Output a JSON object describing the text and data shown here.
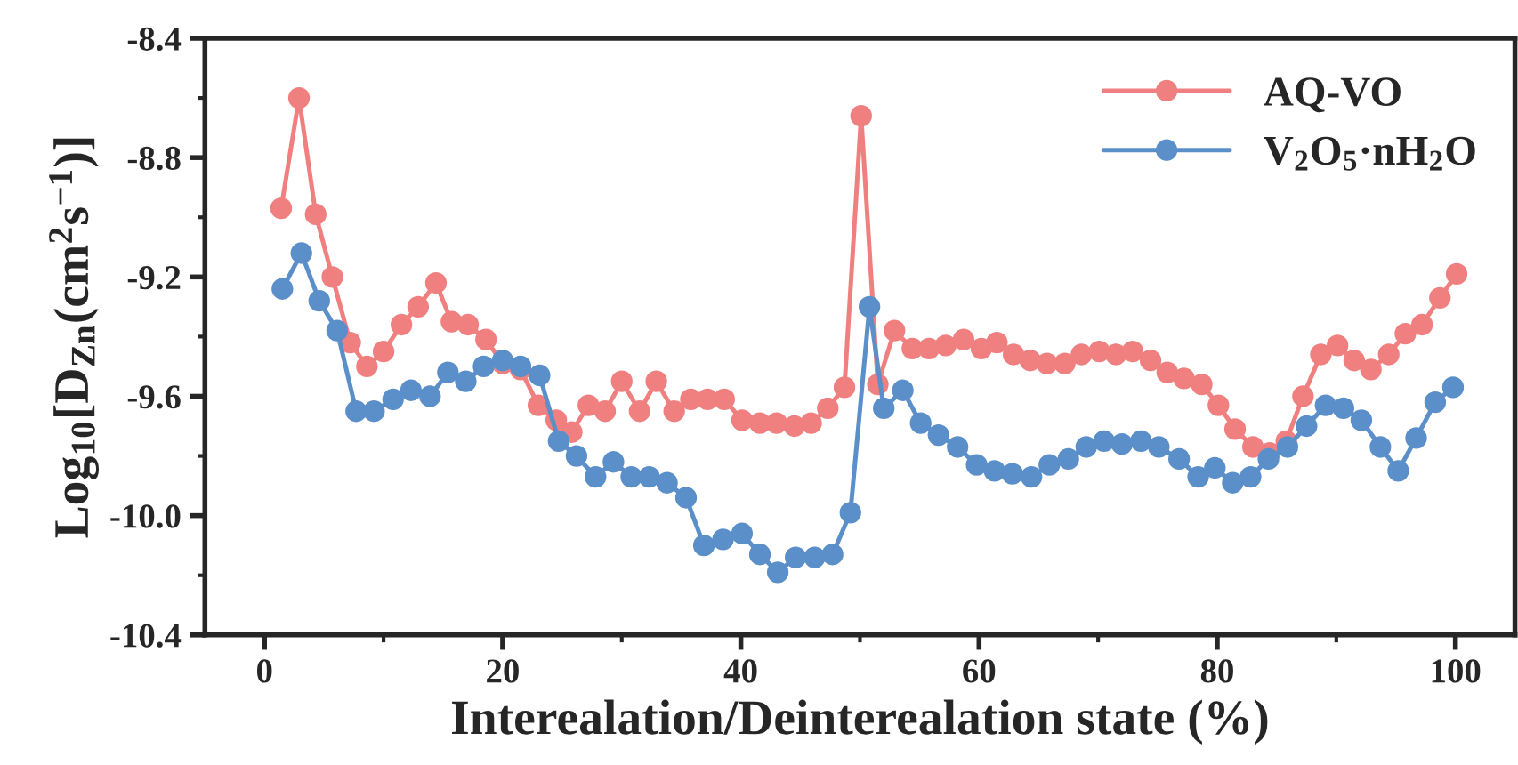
{
  "chart_data": {
    "type": "line",
    "xlabel": "Interealation/Deinterealation state (%)",
    "ylabel": "Log$_{10}$[D$_{Zn}$(cm$^{2}$s$^{−1}$)]",
    "xlim": [
      -5,
      105
    ],
    "xticks": [
      0,
      20,
      40,
      60,
      80,
      100
    ],
    "ylim": [
      -10.4,
      -8.4
    ],
    "yticks": [
      {
        "value": -10.4,
        "label": "-10.4"
      },
      {
        "value": -10.0,
        "label": "-10.0"
      },
      {
        "value": -9.6,
        "label": "-9.6"
      },
      {
        "value": -9.2,
        "label": "-9.2"
      },
      {
        "value": -8.8,
        "label": "-8.8"
      },
      {
        "value": -8.4,
        "label": "-8.4"
      }
    ],
    "grid": false,
    "legend": "top right",
    "marker": "circle",
    "line_style": "solid",
    "series": [
      {
        "name": "AQ-VO",
        "color": "#f08080",
        "x": [
          1.4,
          2.9,
          4.3,
          5.7,
          7.2,
          8.6,
          10.0,
          11.5,
          12.9,
          14.4,
          15.7,
          17.1,
          18.6,
          20.0,
          21.5,
          23.0,
          24.5,
          25.8,
          27.2,
          28.6,
          30.0,
          31.5,
          32.9,
          34.4,
          35.8,
          37.2,
          38.6,
          40.1,
          41.6,
          43.0,
          44.5,
          45.9,
          47.3,
          48.7,
          50.1,
          51.5,
          52.9,
          54.4,
          55.8,
          57.2,
          58.7,
          60.2,
          61.5,
          62.9,
          64.3,
          65.7,
          67.2,
          68.6,
          70.1,
          71.5,
          72.9,
          74.4,
          75.8,
          77.2,
          78.7,
          80.1,
          81.5,
          83.0,
          84.4,
          85.8,
          87.2,
          88.7,
          90.1,
          91.5,
          92.9,
          94.4,
          95.8,
          97.2,
          98.7,
          100.1
        ],
        "values": [
          -8.97,
          -8.6,
          -8.99,
          -9.2,
          -9.42,
          -9.5,
          -9.45,
          -9.36,
          -9.3,
          -9.22,
          -9.35,
          -9.36,
          -9.41,
          -9.49,
          -9.51,
          -9.63,
          -9.68,
          -9.72,
          -9.63,
          -9.65,
          -9.55,
          -9.65,
          -9.55,
          -9.65,
          -9.61,
          -9.61,
          -9.61,
          -9.68,
          -9.69,
          -9.69,
          -9.7,
          -9.69,
          -9.64,
          -9.57,
          -8.66,
          -9.56,
          -9.38,
          -9.44,
          -9.44,
          -9.43,
          -9.41,
          -9.44,
          -9.42,
          -9.46,
          -9.48,
          -9.49,
          -9.49,
          -9.46,
          -9.45,
          -9.46,
          -9.45,
          -9.48,
          -9.52,
          -9.54,
          -9.56,
          -9.63,
          -9.71,
          -9.77,
          -9.79,
          -9.75,
          -9.6,
          -9.46,
          -9.43,
          -9.48,
          -9.51,
          -9.46,
          -9.39,
          -9.36,
          -9.27,
          -9.19
        ]
      },
      {
        "name": "V$_{2}$O$_{5}$·nH$_{2}$O",
        "color": "#5b8fc9",
        "x": [
          1.5,
          3.1,
          4.6,
          6.1,
          7.7,
          9.2,
          10.8,
          12.3,
          13.9,
          15.4,
          16.9,
          18.4,
          20.0,
          21.5,
          23.1,
          24.7,
          26.2,
          27.8,
          29.3,
          30.8,
          32.3,
          33.8,
          35.4,
          36.9,
          38.5,
          40.1,
          41.6,
          43.1,
          44.6,
          46.2,
          47.7,
          49.2,
          50.8,
          52.0,
          53.6,
          55.1,
          56.6,
          58.2,
          59.8,
          61.3,
          62.8,
          64.4,
          65.9,
          67.5,
          69.0,
          70.5,
          72.0,
          73.6,
          75.1,
          76.8,
          78.4,
          79.8,
          81.3,
          82.8,
          84.3,
          85.9,
          87.5,
          89.1,
          90.6,
          92.1,
          93.7,
          95.2,
          96.7,
          98.3,
          99.8
        ],
        "values": [
          -9.24,
          -9.12,
          -9.28,
          -9.38,
          -9.65,
          -9.65,
          -9.61,
          -9.58,
          -9.6,
          -9.52,
          -9.55,
          -9.5,
          -9.48,
          -9.5,
          -9.53,
          -9.75,
          -9.8,
          -9.87,
          -9.82,
          -9.87,
          -9.87,
          -9.89,
          -9.94,
          -10.1,
          -10.08,
          -10.06,
          -10.13,
          -10.19,
          -10.14,
          -10.14,
          -10.13,
          -9.99,
          -9.3,
          -9.64,
          -9.58,
          -9.69,
          -9.73,
          -9.77,
          -9.83,
          -9.85,
          -9.86,
          -9.87,
          -9.83,
          -9.81,
          -9.77,
          -9.75,
          -9.76,
          -9.75,
          -9.77,
          -9.81,
          -9.87,
          -9.84,
          -9.89,
          -9.87,
          -9.81,
          -9.77,
          -9.7,
          -9.63,
          -9.64,
          -9.68,
          -9.77,
          -9.85,
          -9.74,
          -9.62,
          -9.57
        ]
      }
    ]
  }
}
